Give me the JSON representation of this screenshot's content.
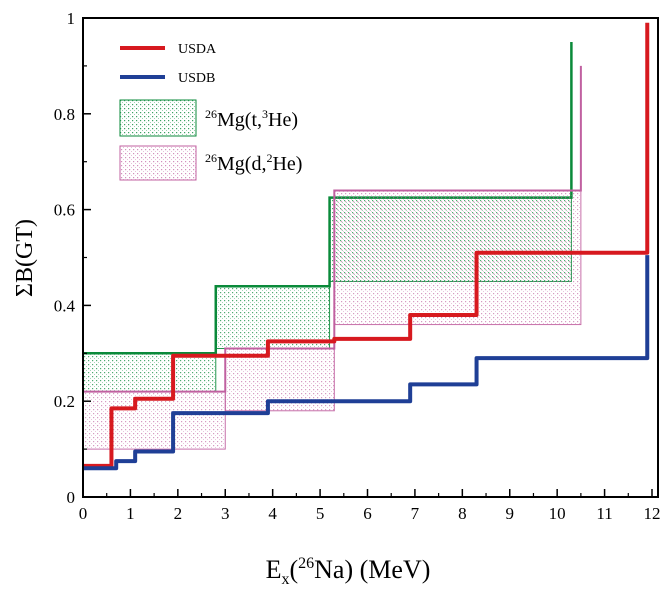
{
  "chart_data": {
    "type": "line",
    "xlabel": {
      "main": "E",
      "sub": "x",
      "paren_open": "(",
      "sup": "26",
      "nucleus": "Na) (MeV)"
    },
    "ylabel": "ΣB(GT)",
    "xlim": [
      0,
      12
    ],
    "ylim": [
      0,
      1
    ],
    "xticks": [
      "0",
      "1",
      "2",
      "3",
      "4",
      "5",
      "6",
      "7",
      "8",
      "9",
      "10",
      "11",
      "12"
    ],
    "yticks": [
      "0",
      "0.2",
      "0.4",
      "0.6",
      "0.8",
      "1"
    ],
    "grid": false,
    "legend_position": "top-left",
    "series": [
      {
        "name": "USDA",
        "color": "#d7191f",
        "kind": "step",
        "x": [
          0,
          0.6,
          1.1,
          1.9,
          3.9,
          5.3,
          6.9,
          8.3,
          11.9,
          11.9
        ],
        "y": [
          0.065,
          0.185,
          0.205,
          0.295,
          0.325,
          0.33,
          0.38,
          0.51,
          0.51,
          0.99
        ]
      },
      {
        "name": "USDB",
        "color": "#1f3f96",
        "kind": "step",
        "x": [
          0,
          0.7,
          1.1,
          1.9,
          3.9,
          6.9,
          8.3,
          11.9,
          11.9
        ],
        "y": [
          0.06,
          0.075,
          0.095,
          0.175,
          0.2,
          0.235,
          0.29,
          0.29,
          0.505
        ]
      }
    ],
    "bands": [
      {
        "name": "Mg(t,He)",
        "label_parts": [
          "26",
          "Mg(t,",
          "3",
          "He)"
        ],
        "color": "#0a8a3a",
        "bins": [
          {
            "x0": 0,
            "x1": 2.8,
            "low": 0.22,
            "high": 0.3
          },
          {
            "x0": 2.8,
            "x1": 5.2,
            "low": 0.31,
            "high": 0.44
          },
          {
            "x0": 5.2,
            "x1": 10.3,
            "low": 0.45,
            "high": 0.625
          }
        ],
        "spike": {
          "x": 10.3,
          "y": 0.95
        }
      },
      {
        "name": "Mg(d,He)",
        "label_parts": [
          "26",
          "Mg(d,",
          "2",
          "He)"
        ],
        "color": "#c060a0",
        "bins": [
          {
            "x0": 0,
            "x1": 3.0,
            "low": 0.1,
            "high": 0.22
          },
          {
            "x0": 3.0,
            "x1": 5.3,
            "low": 0.18,
            "high": 0.31
          },
          {
            "x0": 5.3,
            "x1": 10.5,
            "low": 0.36,
            "high": 0.64
          }
        ],
        "spike": {
          "x": 10.5,
          "y": 0.9
        }
      }
    ]
  }
}
